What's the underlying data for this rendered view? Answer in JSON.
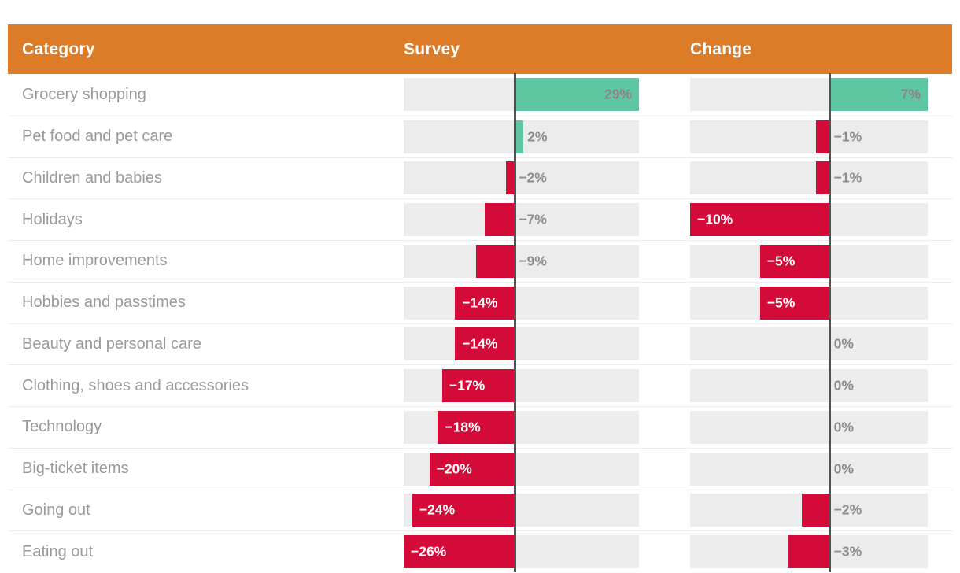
{
  "header": {
    "category_label": "Category",
    "survey_label": "Survey",
    "change_label": "Change"
  },
  "colors": {
    "header_bg": "#dc7c28",
    "header_text": "#ffffff",
    "positive_bar": "#5ec7a2",
    "negative_bar": "#d40a38",
    "track": "#ececec",
    "category_text": "#9a9a9a",
    "label_outside": "#8c8c8c",
    "label_inside_positive": "#8d8289",
    "label_inside_negative": "#ffffff",
    "zero_line": "#525252",
    "row_separator": "#ececec"
  },
  "chart_data": {
    "type": "bar",
    "orientation": "horizontal",
    "value_format": "percent",
    "grid": false,
    "legend": false,
    "categories": [
      "Grocery shopping",
      "Pet food and pet care",
      "Children and babies",
      "Holidays",
      "Home improvements",
      "Hobbies and passtimes",
      "Beauty and personal care",
      "Clothing, shoes and accessories",
      "Technology",
      "Big-ticket items",
      "Going out",
      "Eating out"
    ],
    "series": [
      {
        "name": "Survey",
        "values": [
          29,
          2,
          -2,
          -7,
          -9,
          -14,
          -14,
          -17,
          -18,
          -20,
          -24,
          -26
        ],
        "axis_range": [
          -26,
          29
        ]
      },
      {
        "name": "Change",
        "values": [
          7,
          -1,
          -1,
          -10,
          -5,
          -5,
          0,
          0,
          0,
          0,
          -2,
          -3
        ],
        "axis_range": [
          -10,
          7
        ]
      }
    ]
  }
}
